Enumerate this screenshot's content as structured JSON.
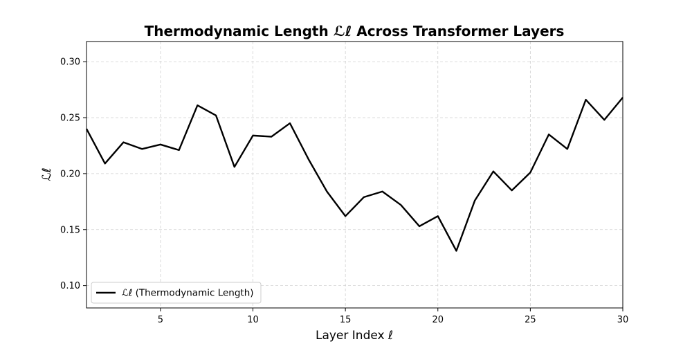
{
  "chart_data": {
    "type": "line",
    "title": "Thermodynamic Length ℒℓ Across Transformer Layers",
    "xlabel": "Layer Index ℓ",
    "ylabel": "ℒℓ",
    "xlim": [
      1,
      30
    ],
    "ylim": [
      0.08,
      0.318
    ],
    "xticks": [
      5,
      10,
      15,
      20,
      25,
      30
    ],
    "yticks": [
      0.1,
      0.15,
      0.2,
      0.25,
      0.3
    ],
    "ytick_labels": [
      "0.10",
      "0.15",
      "0.20",
      "0.25",
      "0.30"
    ],
    "grid": true,
    "legend_position": "lower-left",
    "series": [
      {
        "name": "ℒℓ (Thermodynamic Length)",
        "color": "#000000",
        "x": [
          1,
          2,
          3,
          4,
          5,
          6,
          7,
          8,
          9,
          10,
          11,
          12,
          13,
          14,
          15,
          16,
          17,
          18,
          19,
          20,
          21,
          22,
          23,
          24,
          25,
          26,
          27,
          28,
          29,
          30
        ],
        "values": [
          0.24,
          0.209,
          0.228,
          0.222,
          0.226,
          0.221,
          0.261,
          0.252,
          0.206,
          0.234,
          0.233,
          0.245,
          0.213,
          0.184,
          0.162,
          0.179,
          0.184,
          0.172,
          0.153,
          0.162,
          0.131,
          0.176,
          0.202,
          0.185,
          0.201,
          0.235,
          0.222,
          0.266,
          0.248,
          0.268
        ]
      }
    ]
  }
}
